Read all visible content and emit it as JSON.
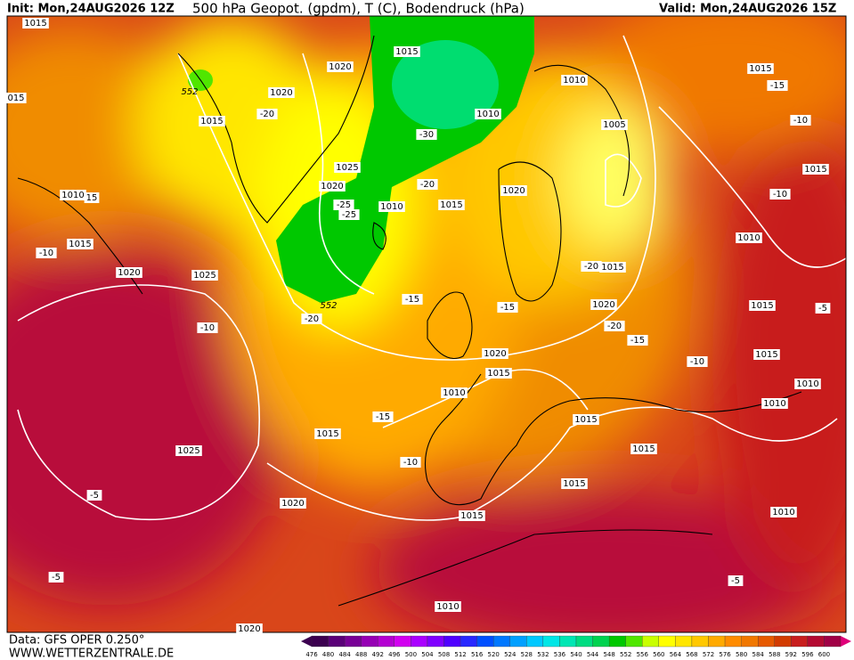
{
  "header": {
    "init": "Init: Mon,24AUG2026 12Z",
    "title": "500 hPa Geopot. (gpdm), T (C), Bodendruck (hPa)",
    "valid": "Valid: Mon,24AUG2026 15Z"
  },
  "footer": {
    "data": "Data: GFS OPER 0.250°",
    "site": "WWW.WETTERZENTRALE.DE"
  },
  "scale": {
    "labels": [
      "476",
      "480",
      "484",
      "488",
      "492",
      "496",
      "500",
      "504",
      "508",
      "512",
      "516",
      "520",
      "524",
      "528",
      "532",
      "536",
      "540",
      "544",
      "548",
      "552",
      "556",
      "560",
      "564",
      "568",
      "572",
      "576",
      "580",
      "584",
      "588",
      "592",
      "596",
      "600"
    ],
    "colors": [
      "#3c0050",
      "#5a0078",
      "#780096",
      "#9600b4",
      "#b400d2",
      "#d200f0",
      "#aa00ff",
      "#8000ff",
      "#5000ff",
      "#2828ff",
      "#0050ff",
      "#0078ff",
      "#00a0ff",
      "#00c8ff",
      "#00e6e6",
      "#00e6b4",
      "#00dc82",
      "#00d250",
      "#00c800",
      "#50e600",
      "#c8ff00",
      "#ffff00",
      "#ffe600",
      "#ffc800",
      "#ffaa00",
      "#ff8c00",
      "#f07800",
      "#e65a00",
      "#d23c00",
      "#c81e1e",
      "#b40a32",
      "#a00046"
    ]
  },
  "pressure_labels": [
    "1015",
    "015",
    "1020",
    "1015",
    "1020",
    "1015",
    "1010",
    "1010",
    "1005",
    "1025",
    "1020",
    "1010",
    "1015",
    "1020",
    "1010",
    "1015",
    "1020",
    "1025",
    "1015",
    "1020",
    "1020",
    "1015",
    "1010",
    "1015",
    "1015",
    "1015",
    "1015",
    "1025",
    "1020",
    "1015",
    "1010",
    "1020",
    "1015",
    "1015",
    "1010",
    "1015",
    "1015",
    "1010",
    "1010",
    "1010"
  ],
  "temperature_labels": [
    "-15",
    "-10",
    "-10",
    "-20",
    "-30",
    "-20",
    "-25",
    "-25",
    "-10",
    "-20",
    "-15",
    "-15",
    "-20",
    "-10",
    "-20",
    "-15",
    "-10",
    "-15",
    "-10",
    "-5",
    "-5",
    "-5",
    "-5",
    "15"
  ],
  "contour_labels": [
    "552",
    "552"
  ]
}
